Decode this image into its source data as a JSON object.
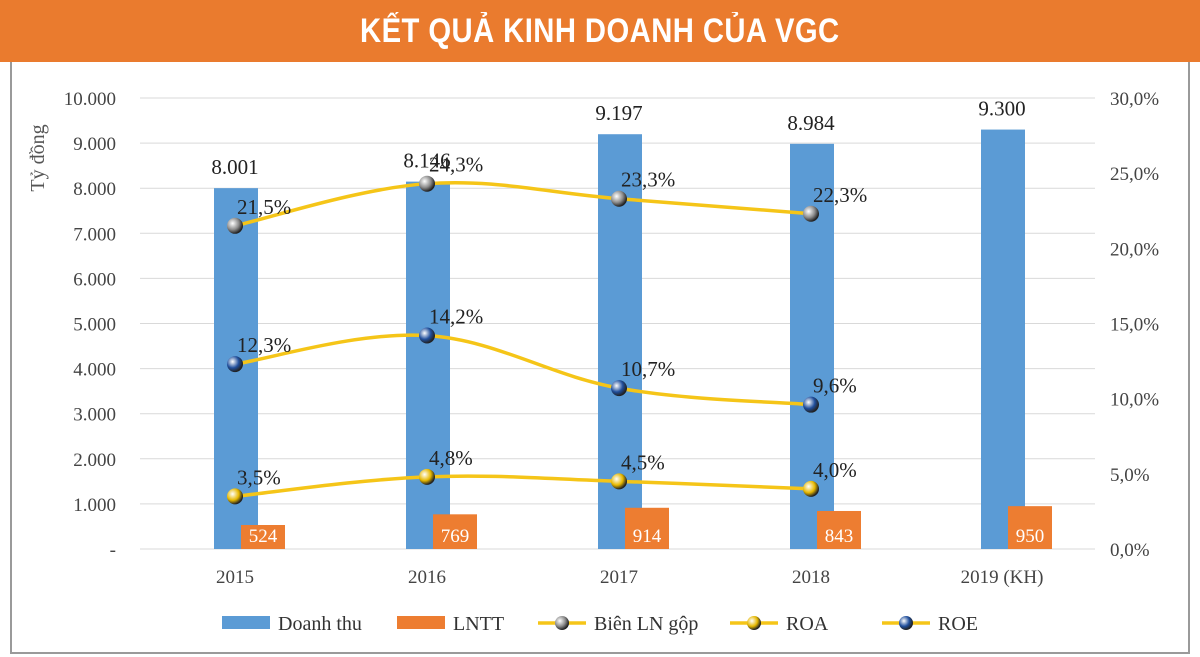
{
  "title": "KẾT QUẢ KINH DOANH CỦA VGC",
  "chart_data": {
    "type": "bar+line",
    "categories": [
      "2015",
      "2016",
      "2017",
      "2018",
      "2019 (KH)"
    ],
    "ylabel": "Tỷ đồng",
    "ylim": [
      0,
      10000
    ],
    "y_ticks": [
      "-",
      "1.000",
      "2.000",
      "3.000",
      "4.000",
      "5.000",
      "6.000",
      "7.000",
      "8.000",
      "9.000",
      "10.000"
    ],
    "y2lim": [
      0,
      30
    ],
    "y2_ticks": [
      "0,0%",
      "5,0%",
      "10,0%",
      "15,0%",
      "20,0%",
      "25,0%",
      "30,0%"
    ],
    "bars": [
      {
        "name": "Doanh thu",
        "color": "#5b9bd5",
        "values": [
          8001,
          8146,
          9197,
          8984,
          9300
        ],
        "labels": [
          "8.001",
          "8.146",
          "9.197",
          "8.984",
          "9.300"
        ]
      },
      {
        "name": "LNTT",
        "color": "#ed7d31",
        "values": [
          524,
          769,
          914,
          843,
          950
        ],
        "labels": [
          "524",
          "769",
          "914",
          "843",
          "950"
        ]
      }
    ],
    "lines": [
      {
        "name": "Biên LN gộp",
        "marker_color": "#8c8c8c",
        "line_color": "#f5c518",
        "values": [
          21.5,
          24.3,
          23.3,
          22.3
        ],
        "labels": [
          "21,5%",
          "24,3%",
          "23,3%",
          "22,3%"
        ]
      },
      {
        "name": "ROA",
        "marker_color": "#e6b800",
        "line_color": "#f5c518",
        "values": [
          3.5,
          4.8,
          4.5,
          4.0
        ],
        "labels": [
          "3,5%",
          "4,8%",
          "4,5%",
          "4,0%"
        ]
      },
      {
        "name": "ROE",
        "marker_color": "#1f4e9c",
        "line_color": "#f5c518",
        "values": [
          12.3,
          14.2,
          10.7,
          9.6
        ],
        "labels": [
          "12,3%",
          "14,2%",
          "10,7%",
          "9,6%"
        ]
      }
    ],
    "legend": [
      "Doanh thu",
      "LNTT",
      "Biên LN gộp",
      "ROA",
      "ROE"
    ],
    "legend_position": "bottom",
    "grid": true
  }
}
